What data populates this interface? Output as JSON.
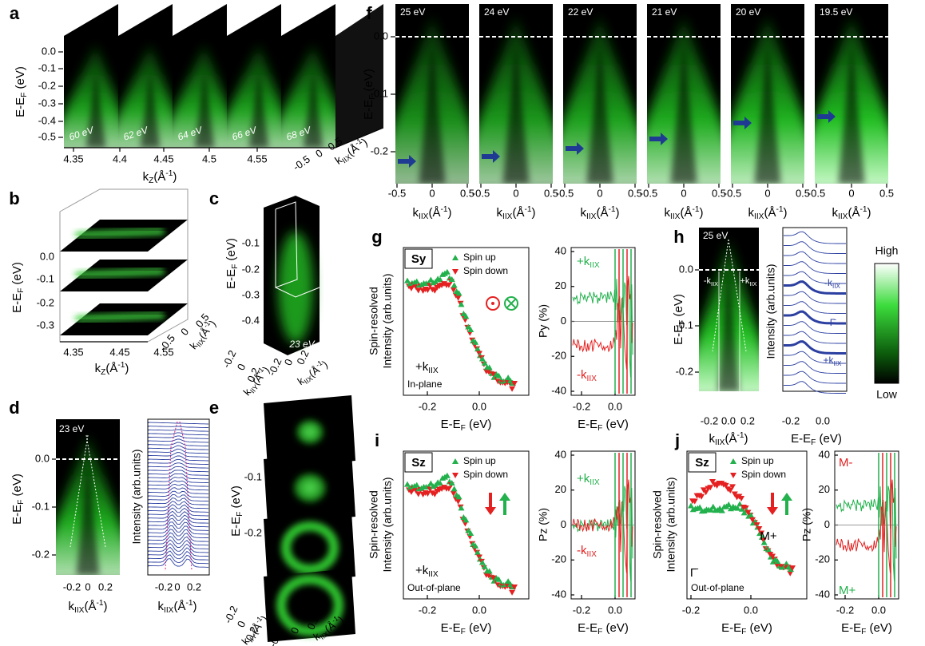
{
  "panels": {
    "a": {
      "label": "a",
      "energies": [
        "60 eV",
        "62 eV",
        "64 eV",
        "66 eV",
        "68 eV"
      ],
      "y_ticks": [
        "0.0",
        "-0.1",
        "-0.2",
        "-0.3",
        "-0.4",
        "-0.5"
      ],
      "y_label": [
        "E-E",
        {
          "sub": "F"
        },
        " (eV)"
      ],
      "kz_ticks": [
        "4.35",
        "4.4",
        "4.45",
        "4.5",
        "4.55"
      ],
      "kz_label": [
        "k",
        {
          "sub": "Z"
        },
        "(Å",
        {
          "sup": "-1"
        },
        ")"
      ],
      "k_ticks": [
        "-0.5",
        "0",
        "0.5"
      ],
      "k_label": [
        "k",
        {
          "sub": "IIX"
        },
        "(Å",
        {
          "sup": "-1"
        },
        ")"
      ]
    },
    "b": {
      "label": "b",
      "y_ticks": [
        "0.0",
        "-0.1",
        "-0.2",
        "-0.3"
      ],
      "y_label": [
        "E-E",
        {
          "sub": "F"
        },
        " (eV)"
      ],
      "kz_ticks": [
        "4.35",
        "4.45",
        "4.55"
      ],
      "kz_label": [
        "k",
        {
          "sub": "Z"
        },
        "(Å",
        {
          "sup": "-1"
        },
        ")"
      ],
      "k_ticks": [
        "-0.5",
        "0",
        "0.5"
      ],
      "k_label": [
        "k",
        {
          "sub": "IIX"
        },
        "(Å",
        {
          "sup": "-1"
        },
        ")"
      ]
    },
    "c": {
      "label": "c",
      "energy": "23 eV",
      "y_ticks": [
        "-0.1",
        "-0.2",
        "-0.3",
        "-0.4"
      ],
      "y_label": [
        "E-E",
        {
          "sub": "F"
        },
        " (eV)"
      ],
      "ky_ticks": [
        "-0.2",
        "0",
        "0.2"
      ],
      "ky_label": [
        "k",
        {
          "sub": "IIY"
        },
        "(Å",
        {
          "sup": "-1"
        },
        ")"
      ],
      "kx_ticks": [
        "-0.2",
        "0",
        "0.2"
      ],
      "kx_label": [
        "k",
        {
          "sub": "IIX"
        },
        "(Å",
        {
          "sup": "-1"
        },
        ")"
      ]
    },
    "d": {
      "label": "d",
      "energy": "23 eV",
      "y_ticks": [
        "0.0",
        "-0.1",
        "-0.2"
      ],
      "y_label": [
        "E-E",
        {
          "sub": "F"
        },
        " (eV)"
      ],
      "x_ticks": [
        "-0.2",
        "0",
        "0.2"
      ],
      "x_label": [
        "k",
        {
          "sub": "IIX"
        },
        "(Å",
        {
          "sup": "-1"
        },
        ")"
      ],
      "edc_label": "Intensity (arb.units)",
      "edc_x_ticks": [
        "-0.2",
        "0",
        "0.2"
      ],
      "edc_x_label": [
        "k",
        {
          "sub": "IIX"
        },
        "(Å",
        {
          "sup": "-1"
        },
        ")"
      ]
    },
    "e": {
      "label": "e",
      "y_ticks": [
        "-0.1",
        "-0.2"
      ],
      "y_label": [
        "E-E",
        {
          "sub": "F"
        },
        " (eV)"
      ],
      "ky_ticks": [
        "-0.2",
        "0",
        "0.2"
      ],
      "ky_label": [
        "k",
        {
          "sub": "IIY"
        },
        "(Å",
        {
          "sup": "-1"
        },
        ")"
      ],
      "kx_ticks": [
        "-0.2",
        "0",
        "0.2"
      ],
      "kx_label": [
        "k",
        {
          "sub": "IIX"
        },
        "(Å",
        {
          "sup": "-1"
        },
        ")"
      ]
    },
    "f": {
      "label": "f",
      "energies": [
        "25 eV",
        "24 eV",
        "22 eV",
        "21 eV",
        "20 eV",
        "19.5 eV"
      ],
      "y_ticks": [
        "0.0",
        "-0.1",
        "-0.2"
      ],
      "y_label": [
        "E-E",
        {
          "sub": "F"
        },
        " (eV)"
      ],
      "x_ticks": [
        "-0.5",
        "0",
        "0.5"
      ],
      "x_label": [
        "k",
        {
          "sub": "IIX"
        },
        "(Å",
        {
          "sup": "-1"
        },
        ")"
      ]
    },
    "g": {
      "label": "g",
      "box": "Sy",
      "legend": [
        "Spin up",
        "Spin down"
      ],
      "k": [
        "+k",
        {
          "sub": "IIX"
        }
      ],
      "geometry": "In-plane",
      "y_label": [
        "Spin-resolved",
        "Intensity (arb.units)"
      ],
      "x_ticks": [
        "-0.2",
        "0.0"
      ],
      "x_label": [
        "E-E",
        {
          "sub": "F"
        },
        " (eV)"
      ],
      "p_label": "Py (%)",
      "p_ticks": [
        "40",
        "20",
        "0",
        "-20",
        "-40"
      ],
      "p_plus": [
        "+k",
        {
          "sub": "IIX"
        }
      ],
      "p_minus": [
        "-k",
        {
          "sub": "IIX"
        }
      ],
      "p_x_ticks": [
        "-0.2",
        "0.0"
      ],
      "p_x_label": [
        "E-E",
        {
          "sub": "F"
        },
        " (eV)"
      ]
    },
    "h": {
      "label": "h",
      "energy": "25 eV",
      "minus": [
        "-k",
        {
          "sub": "IIX"
        }
      ],
      "plus": [
        "+k",
        {
          "sub": "IIX"
        }
      ],
      "y_ticks": [
        "0.0",
        "-0.1",
        "-0.2"
      ],
      "y_label": [
        "E-E",
        {
          "sub": "F"
        },
        " (eV)"
      ],
      "x_ticks": [
        "-0.2",
        "0.0",
        "0.2"
      ],
      "x_label": [
        "k",
        {
          "sub": "IIX"
        },
        "(Å",
        {
          "sup": "-1"
        },
        ")"
      ],
      "edc_label": "Intensity (arb.units)",
      "edc_minus": [
        "-k",
        {
          "sub": "IIX"
        }
      ],
      "edc_gamma": "Γ̄",
      "edc_plus": [
        "+k",
        {
          "sub": "IIX"
        }
      ],
      "edc_x_ticks": [
        "-0.2",
        "0.0"
      ],
      "edc_x_label": [
        "E-E",
        {
          "sub": "F"
        },
        " (eV)"
      ],
      "scale": [
        "High",
        "Low"
      ]
    },
    "i": {
      "label": "i",
      "box": "Sz",
      "legend": [
        "Spin up",
        "Spin down"
      ],
      "k": [
        "+k",
        {
          "sub": "IIX"
        }
      ],
      "geometry": "Out-of-plane",
      "y_label": [
        "Spin-resolved",
        "Intensity (arb.units)"
      ],
      "x_ticks": [
        "-0.2",
        "0.0"
      ],
      "x_label": [
        "E-E",
        {
          "sub": "F"
        },
        " (eV)"
      ],
      "p_label": "Pz (%)",
      "p_ticks": [
        "40",
        "20",
        "0",
        "-20",
        "-40"
      ],
      "p_plus": [
        "+k",
        {
          "sub": "IIX"
        }
      ],
      "p_minus": [
        "-k",
        {
          "sub": "IIX"
        }
      ],
      "p_x_ticks": [
        "-0.2",
        "0.0"
      ],
      "p_x_label": [
        "E-E",
        {
          "sub": "F"
        },
        " (eV)"
      ]
    },
    "j": {
      "label": "j",
      "box": "Sz",
      "legend": [
        "Spin up",
        "Spin down"
      ],
      "state": "M+",
      "gamma": "Γ̄",
      "geometry": "Out-of-plane",
      "y_label": [
        "Spin-resolved",
        "Intensity (arb.units)"
      ],
      "x_ticks": [
        "-0.2",
        "0.0"
      ],
      "x_label": [
        "E-E",
        {
          "sub": "F"
        },
        " (eV)"
      ],
      "p_label": "Pz (%)",
      "p_ticks": [
        "40",
        "20",
        "0",
        "-20",
        "-40"
      ],
      "p_minus": "M-",
      "p_plus": "M+",
      "p_x_ticks": [
        "-0.2",
        "0.0"
      ],
      "p_x_label": [
        "E-E",
        {
          "sub": "F"
        },
        " (eV)"
      ]
    }
  }
}
